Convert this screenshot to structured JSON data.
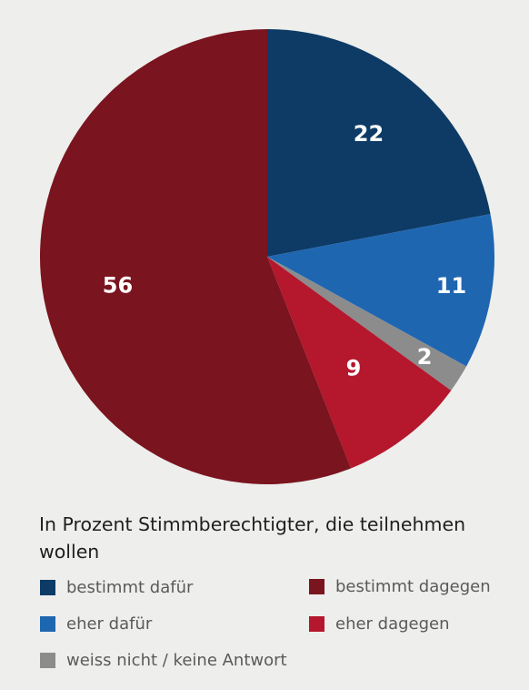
{
  "chart_data": {
    "type": "pie",
    "slices": [
      {
        "label": "bestimmt dafür",
        "value": 22,
        "color": "#0d3b66",
        "value_label": "22"
      },
      {
        "label": "eher dafür",
        "value": 11,
        "color": "#1f66b1",
        "value_label": "11"
      },
      {
        "label": "weiss nicht / keine Antwort",
        "value": 2,
        "color": "#8c8c8c",
        "value_label": "2"
      },
      {
        "label": "eher dagegen",
        "value": 9,
        "color": "#b5172d",
        "value_label": "9"
      },
      {
        "label": "bestimmt dagegen",
        "value": 56,
        "color": "#7a141f",
        "value_label": "56"
      }
    ],
    "start": "12 o'clock, clockwise"
  },
  "caption": "In Prozent Stimmberechtigter, die teilnehmen wollen",
  "legend": {
    "placement": "bottom",
    "items": [
      {
        "label": "bestimmt dafür",
        "color": "#0d3b66"
      },
      {
        "label": "eher dafür",
        "color": "#1f66b1"
      },
      {
        "label": "weiss nicht / keine Antwort",
        "color": "#8c8c8c"
      },
      {
        "label": "bestimmt dagegen",
        "color": "#7a141f"
      },
      {
        "label": "eher dagegen",
        "color": "#b5172d"
      }
    ]
  }
}
